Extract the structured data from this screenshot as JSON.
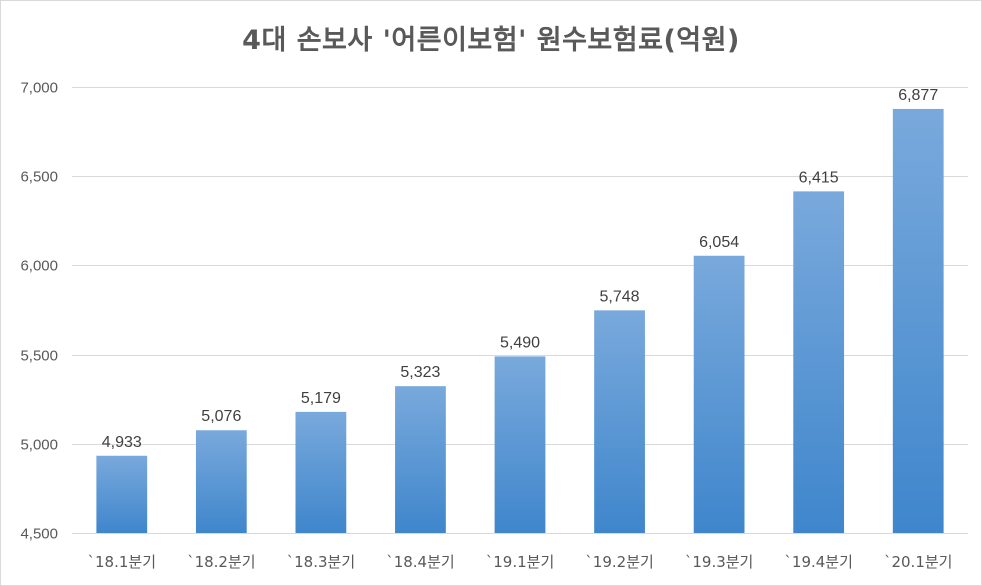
{
  "chart_data": {
    "type": "bar",
    "title": "4대 손보사 '어른이보험' 원수보험료(억원)",
    "xlabel": "",
    "ylabel": "",
    "categories": [
      "`18.1분기",
      "`18.2분기",
      "`18.3분기",
      "`18.4분기",
      "`19.1분기",
      "`19.2분기",
      "`19.3분기",
      "`19.4분기",
      "`20.1분기"
    ],
    "values": [
      4933,
      5076,
      5179,
      5323,
      5490,
      5748,
      6054,
      6415,
      6877
    ],
    "value_labels": [
      "4,933",
      "5,076",
      "5,179",
      "5,323",
      "5,490",
      "5,748",
      "6,054",
      "6,415",
      "6,877"
    ],
    "ylim": [
      4500,
      7000
    ],
    "yticks": [
      4500,
      5000,
      5500,
      6000,
      6500,
      7000
    ],
    "ytick_labels": [
      "4,500",
      "5,000",
      "5,500",
      "6,000",
      "6,500",
      "7,000"
    ],
    "grid": true,
    "legend": "none",
    "colors": {
      "bar_top": "#79a9dc",
      "bar_bottom": "#3f86cc",
      "grid": "#d9d9d9",
      "text": "#595959"
    }
  }
}
